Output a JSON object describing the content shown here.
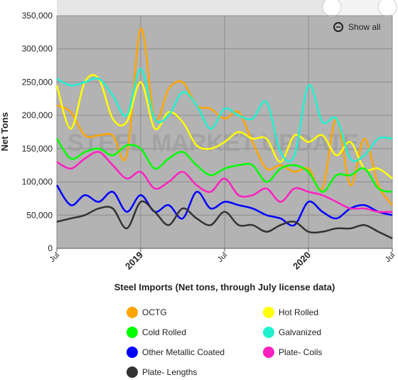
{
  "chart_data": {
    "type": "line",
    "xlabel": "Steel Imports (Net tons, through July license data)",
    "ylabel": "Net Tons",
    "watermark": "STEEL MARKET UPDATE",
    "reset_label": "Show all",
    "categories": [
      "Jul",
      null,
      null,
      null,
      null,
      null,
      "2019",
      null,
      null,
      null,
      null,
      null,
      "Jul",
      null,
      null,
      null,
      null,
      null,
      "2020",
      null,
      null,
      null,
      null,
      null,
      "Jul"
    ],
    "ylim": [
      0,
      350000
    ],
    "yticks": [
      0,
      {
        "value": 50000,
        "label": "50,000"
      },
      {
        "value": 100000,
        "label": "100,000"
      },
      {
        "value": 150000,
        "label": "150,000"
      },
      {
        "value": 200000,
        "label": "200,000"
      },
      {
        "value": 250000,
        "label": "250,000"
      },
      {
        "value": 300000,
        "label": "300,000"
      },
      {
        "value": 350000,
        "label": "350,000"
      }
    ],
    "grid": true,
    "series": [
      {
        "name": "OCTG",
        "color": "#ffa500",
        "values": [
          215000,
          205000,
          170000,
          170000,
          170000,
          140000,
          330000,
          195000,
          240000,
          250000,
          215000,
          210000,
          195000,
          205000,
          160000,
          120000,
          125000,
          115000,
          120000,
          90000,
          195000,
          95000,
          165000,
          95000,
          65000
        ]
      },
      {
        "name": "Hot Rolled",
        "color": "#ffff00",
        "values": [
          245000,
          180000,
          250000,
          255000,
          195000,
          190000,
          250000,
          180000,
          205000,
          190000,
          155000,
          150000,
          160000,
          175000,
          165000,
          165000,
          130000,
          170000,
          160000,
          170000,
          140000,
          160000,
          120000,
          120000,
          105000
        ]
      },
      {
        "name": "Cold Rolled",
        "color": "#00ff00",
        "values": [
          165000,
          135000,
          145000,
          150000,
          140000,
          155000,
          150000,
          120000,
          135000,
          145000,
          125000,
          110000,
          120000,
          125000,
          125000,
          100000,
          120000,
          125000,
          115000,
          85000,
          110000,
          110000,
          120000,
          90000,
          85000
        ]
      },
      {
        "name": "Galvanized",
        "color": "#20f0d0",
        "values": [
          255000,
          245000,
          250000,
          255000,
          230000,
          200000,
          270000,
          195000,
          200000,
          235000,
          215000,
          180000,
          210000,
          200000,
          195000,
          220000,
          145000,
          140000,
          245000,
          190000,
          195000,
          135000,
          140000,
          165000,
          165000
        ]
      },
      {
        "name": "Other Metallic Coated",
        "color": "#0000ff",
        "values": [
          95000,
          65000,
          80000,
          70000,
          85000,
          55000,
          80000,
          55000,
          65000,
          45000,
          85000,
          60000,
          70000,
          65000,
          60000,
          50000,
          45000,
          35000,
          70000,
          55000,
          45000,
          60000,
          65000,
          55000,
          50000
        ]
      },
      {
        "name": "Plate- Coils",
        "color": "#ff20c0",
        "values": [
          130000,
          120000,
          135000,
          145000,
          125000,
          105000,
          115000,
          90000,
          100000,
          115000,
          95000,
          85000,
          105000,
          80000,
          80000,
          90000,
          70000,
          90000,
          85000,
          80000,
          70000,
          60000,
          60000,
          55000,
          55000
        ]
      },
      {
        "name": "Plate- Lengths",
        "color": "#333333",
        "values": [
          40000,
          45000,
          50000,
          60000,
          60000,
          30000,
          70000,
          55000,
          35000,
          60000,
          45000,
          35000,
          55000,
          35000,
          35000,
          25000,
          35000,
          40000,
          25000,
          25000,
          30000,
          30000,
          35000,
          25000,
          15000
        ]
      }
    ]
  }
}
